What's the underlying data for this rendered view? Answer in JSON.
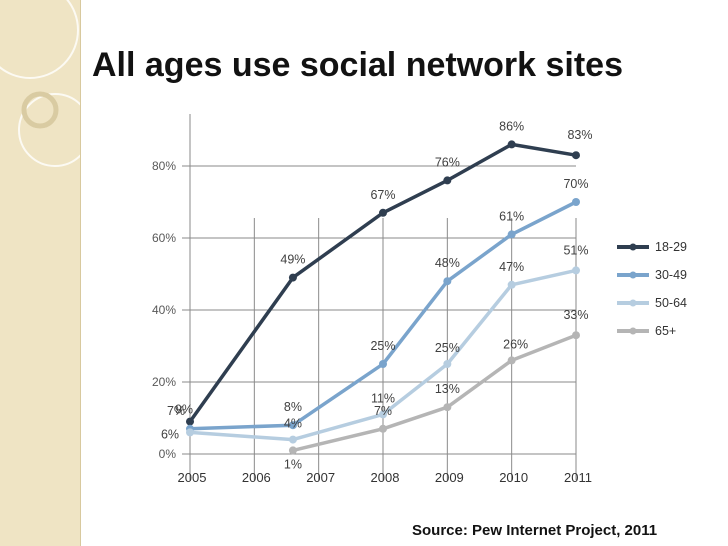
{
  "slide": {
    "title": "All ages use social network sites",
    "source": "Source: Pew Internet Project, 2011"
  },
  "colors": {
    "background": "#ffffff",
    "side_strip": "#efe4c4",
    "grid": "#8a8a8a",
    "tick_text": "#595959",
    "label_text": "#404040"
  },
  "chart_data": {
    "type": "line",
    "title": "",
    "xlabel": "",
    "ylabel": "",
    "x_ticks": [
      "2005",
      "2006",
      "2007",
      "2008",
      "2009",
      "2010",
      "2011"
    ],
    "y_ticks": [
      "0%",
      "20%",
      "40%",
      "60%",
      "80%"
    ],
    "xlim": [
      2005,
      2011
    ],
    "ylim": [
      0,
      90
    ],
    "grid": true,
    "legend_position": "right",
    "series": [
      {
        "name": "18-29",
        "color": "#2f3e50",
        "points": [
          [
            2005,
            9
          ],
          [
            2006.6,
            49
          ],
          [
            2008,
            67
          ],
          [
            2009,
            76
          ],
          [
            2010,
            86
          ],
          [
            2011,
            83
          ]
        ],
        "labels": [
          "9%",
          "49%",
          "67%",
          "76%",
          "86%",
          "83%"
        ]
      },
      {
        "name": "30-49",
        "color": "#7aa4cc",
        "points": [
          [
            2005,
            7
          ],
          [
            2006.6,
            8
          ],
          [
            2008,
            25
          ],
          [
            2009,
            48
          ],
          [
            2010,
            61
          ],
          [
            2011,
            70
          ]
        ],
        "labels": [
          "7%",
          "8%",
          "25%",
          "48%",
          "61%",
          "70%"
        ]
      },
      {
        "name": "50-64",
        "color": "#b6cde0",
        "points": [
          [
            2005,
            6
          ],
          [
            2006.6,
            4
          ],
          [
            2008,
            11
          ],
          [
            2009,
            25
          ],
          [
            2010,
            47
          ],
          [
            2011,
            51
          ]
        ],
        "labels": [
          "6%",
          "4%",
          "11%",
          "25%",
          "47%",
          "51%"
        ]
      },
      {
        "name": "65+",
        "color": "#b5b5b5",
        "points": [
          [
            2006.6,
            1
          ],
          [
            2008,
            7
          ],
          [
            2009,
            13
          ],
          [
            2010,
            26
          ],
          [
            2011,
            33
          ]
        ],
        "labels": [
          "1%",
          "7%",
          "13%",
          "26%",
          "33%"
        ]
      }
    ]
  }
}
